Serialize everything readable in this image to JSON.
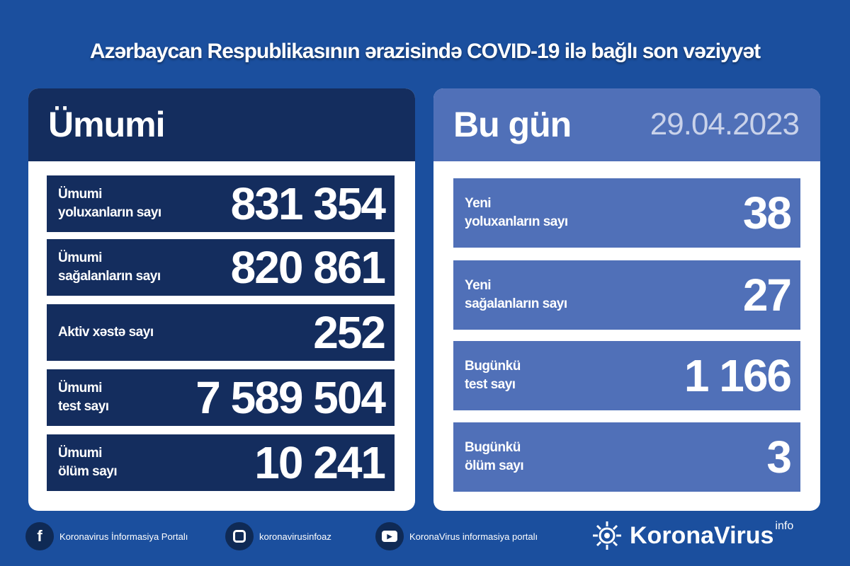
{
  "title": "Azərbaycan Respublikasının ərazisində COVID-19 ilə bağlı son vəziyyət",
  "total": {
    "heading": "Ümumi",
    "rows": [
      {
        "label": "Ümumi\nyoluxanların sayı",
        "value": "831 354"
      },
      {
        "label": "Ümumi\nsağalanların sayı",
        "value": "820 861"
      },
      {
        "label": "Aktiv xəstə sayı",
        "value": "252"
      },
      {
        "label": "Ümumi\ntest sayı",
        "value": "7 589 504"
      },
      {
        "label": "Ümumi\nölüm sayı",
        "value": "10 241"
      }
    ]
  },
  "today": {
    "heading": "Bu gün",
    "date": "29.04.2023",
    "rows": [
      {
        "label": "Yeni\nyoluxanların sayı",
        "value": "38"
      },
      {
        "label": "Yeni\nsağalanların sayı",
        "value": "27"
      },
      {
        "label": "Bugünkü\ntest sayı",
        "value": "1 166"
      },
      {
        "label": "Bugünkü\nölüm sayı",
        "value": "3"
      }
    ]
  },
  "footer": {
    "facebook": "Koronavirus İnformasiya Portalı",
    "instagram": "koronavirusinfoaz",
    "youtube": "KoronaVirus informasiya portalı",
    "logo": "KoronaVirus",
    "logo_sup": "info"
  },
  "colors": {
    "background": "#1b4f9e",
    "dark_panel": "#142d5e",
    "light_panel": "#5070b8"
  }
}
